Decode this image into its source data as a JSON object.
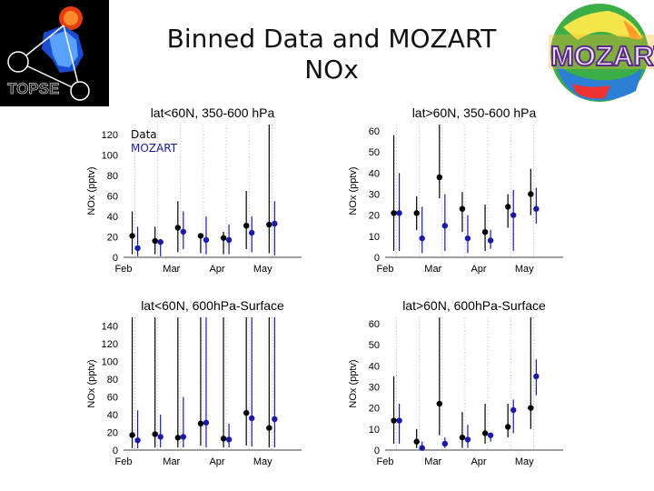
{
  "slide": {
    "title_line1": "Binned Data and MOZART",
    "title_line2": "NOx",
    "logo_left_text": "TOPSE",
    "logo_right_text": "MOZART"
  },
  "legend": {
    "data_label": "Data",
    "model_label": "MOZART"
  },
  "colors": {
    "data": "#000000",
    "model": "#1a1aa8"
  },
  "chart_data": [
    {
      "type": "scatter",
      "id": "tl",
      "title": "lat<60N, 350-600 hPa",
      "ylabel": "NOx (pptv)",
      "xticks": [
        "Feb",
        "Mar",
        "Apr",
        "May"
      ],
      "ylim": [
        0,
        130
      ],
      "yticks": [
        0,
        20,
        40,
        60,
        80,
        100,
        120
      ],
      "bins": [
        1,
        2,
        3,
        4,
        5,
        6,
        7
      ],
      "series": [
        {
          "name": "Data",
          "y": [
            21,
            16,
            29,
            21,
            19,
            31,
            32
          ],
          "err_low": [
            3,
            3,
            5,
            4,
            3,
            8,
            4
          ],
          "err_high": [
            45,
            30,
            55,
            20,
            25,
            65,
            130
          ]
        },
        {
          "name": "MOZART",
          "y": [
            9,
            15,
            25,
            17,
            17,
            24,
            33
          ],
          "err_low": [
            1,
            1,
            8,
            3,
            3,
            5,
            2
          ],
          "err_high": [
            30,
            18,
            45,
            40,
            32,
            40,
            55
          ]
        }
      ]
    },
    {
      "type": "scatter",
      "id": "tr",
      "title": "lat>60N, 350-600 hPa",
      "ylabel": "NOx (pptv)",
      "xticks": [
        "Feb",
        "Mar",
        "Apr",
        "May"
      ],
      "ylim": [
        0,
        63
      ],
      "yticks": [
        0,
        10,
        20,
        30,
        40,
        50,
        60
      ],
      "bins": [
        1,
        2,
        3,
        4,
        5,
        6,
        7
      ],
      "series": [
        {
          "name": "Data",
          "y": [
            21,
            21,
            38,
            23,
            12,
            24,
            30
          ],
          "err_low": [
            3,
            13,
            28,
            12,
            3,
            14,
            20
          ],
          "err_high": [
            58,
            29,
            65,
            31,
            25,
            30,
            42
          ]
        },
        {
          "name": "MOZART",
          "y": [
            21,
            9,
            15,
            9,
            8,
            20,
            23
          ],
          "err_low": [
            3,
            2,
            3,
            2,
            4,
            3,
            16
          ],
          "err_high": [
            40,
            24,
            30,
            20,
            13,
            32,
            33
          ]
        }
      ]
    },
    {
      "type": "scatter",
      "id": "bl",
      "title": "lat<60N, 600hPa-Surface",
      "ylabel": "NOx (pptv)",
      "xticks": [
        "Feb",
        "Mar",
        "Apr",
        "May"
      ],
      "ylim": [
        0,
        150
      ],
      "yticks": [
        0,
        20,
        40,
        60,
        80,
        100,
        120,
        140
      ],
      "bins": [
        1,
        2,
        3,
        4,
        5,
        6,
        7
      ],
      "series": [
        {
          "name": "Data",
          "y": [
            17,
            18,
            14,
            30,
            13,
            42,
            25
          ],
          "err_low": [
            2,
            3,
            3,
            5,
            3,
            5,
            3
          ],
          "err_high": [
            150,
            150,
            150,
            150,
            150,
            150,
            150
          ]
        },
        {
          "name": "MOZART",
          "y": [
            11,
            15,
            15,
            31,
            12,
            36,
            35
          ],
          "err_low": [
            2,
            3,
            3,
            3,
            3,
            4,
            3
          ],
          "err_high": [
            45,
            40,
            60,
            150,
            30,
            150,
            150
          ]
        }
      ]
    },
    {
      "type": "scatter",
      "id": "br",
      "title": "lat>60N, 600hPa-Surface",
      "ylabel": "NOx (pptv)",
      "xticks": [
        "Feb",
        "Mar",
        "Apr",
        "May"
      ],
      "ylim": [
        0,
        63
      ],
      "yticks": [
        0,
        10,
        20,
        30,
        40,
        50,
        60
      ],
      "bins": [
        1,
        2,
        3,
        4,
        5,
        6,
        7
      ],
      "series": [
        {
          "name": "Data",
          "y": [
            14,
            4,
            22,
            6,
            8,
            11,
            20
          ],
          "err_low": [
            3,
            1,
            7,
            1,
            3,
            6,
            10
          ],
          "err_high": [
            35,
            10,
            63,
            18,
            22,
            22,
            63
          ]
        },
        {
          "name": "MOZART",
          "y": [
            14,
            1,
            3,
            5,
            7,
            19,
            35
          ],
          "err_low": [
            3,
            0,
            1,
            1,
            4,
            8,
            26
          ],
          "err_high": [
            22,
            4,
            6,
            12,
            8,
            24,
            43
          ]
        }
      ]
    }
  ]
}
